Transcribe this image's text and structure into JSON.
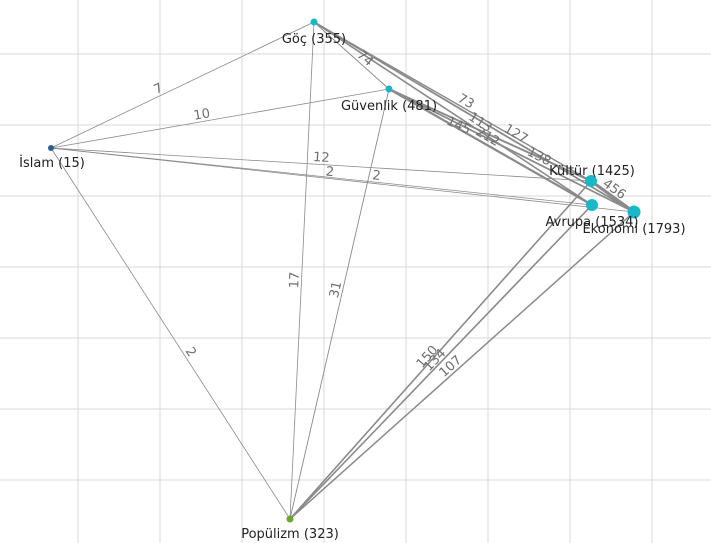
{
  "colors": {
    "background": "#ffffff",
    "grid": "#d9d9d9",
    "edge": "#8a8a8a",
    "node_theme": "#18b8c8",
    "node_islam": "#2b5f8f",
    "node_populizm": "#6aa630"
  },
  "nodes": [
    {
      "id": "goc",
      "label": "Göç (355)"
    },
    {
      "id": "guvenlik",
      "label": "Güvenlik (481)"
    },
    {
      "id": "islam",
      "label": "İslam (15)"
    },
    {
      "id": "kultur",
      "label": "Kültür (1425)"
    },
    {
      "id": "avrupa",
      "label": "Avrupa (1534)"
    },
    {
      "id": "ekonomi",
      "label": "Ekonomi (1793)"
    },
    {
      "id": "populizm",
      "label": "Popülizm (323)"
    }
  ],
  "edges": [
    {
      "source": "islam",
      "target": "goc",
      "weight": "7"
    },
    {
      "source": "islam",
      "target": "guvenlik",
      "weight": "10"
    },
    {
      "source": "islam",
      "target": "kultur",
      "weight": "12"
    },
    {
      "source": "islam",
      "target": "avrupa",
      "weight": "2"
    },
    {
      "source": "islam",
      "target": "ekonomi",
      "weight": "2"
    },
    {
      "source": "islam",
      "target": "populizm",
      "weight": "2"
    },
    {
      "source": "goc",
      "target": "guvenlik",
      "weight": "74"
    },
    {
      "source": "goc",
      "target": "kultur",
      "weight": "73"
    },
    {
      "source": "goc",
      "target": "avrupa",
      "weight": "113"
    },
    {
      "source": "goc",
      "target": "ekonomi",
      "weight": "127"
    },
    {
      "source": "guvenlik",
      "target": "kultur",
      "weight": "145"
    },
    {
      "source": "guvenlik",
      "target": "avrupa",
      "weight": "212"
    },
    {
      "source": "guvenlik",
      "target": "ekonomi",
      "weight": "138"
    },
    {
      "source": "kultur",
      "target": "ekonomi",
      "weight": "456"
    },
    {
      "source": "goc",
      "target": "populizm",
      "weight": "17"
    },
    {
      "source": "guvenlik",
      "target": "populizm",
      "weight": "31"
    },
    {
      "source": "kultur",
      "target": "populizm",
      "weight": "150"
    },
    {
      "source": "avrupa",
      "target": "populizm",
      "weight": "134"
    },
    {
      "source": "ekonomi",
      "target": "populizm",
      "weight": "107"
    }
  ]
}
